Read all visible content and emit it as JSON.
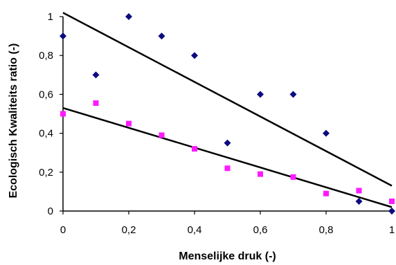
{
  "chart_data": {
    "type": "scatter",
    "title": "",
    "xlabel": "Menselijke druk (-)",
    "ylabel": "Ecologisch Kwaliteits ratio (-)",
    "xlim": [
      0,
      1
    ],
    "ylim": [
      0,
      1
    ],
    "grid": false,
    "legend": "none",
    "x_ticks": [
      0,
      0.2,
      0.4,
      0.6,
      0.8,
      1
    ],
    "x_tick_labels": [
      "0",
      "0,2",
      "0,4",
      "0,6",
      "0,8",
      "1"
    ],
    "y_ticks": [
      0,
      0.2,
      0.4,
      0.6,
      0.8,
      1
    ],
    "y_tick_labels": [
      "0",
      "0,2",
      "0,4",
      "0,6",
      "0,8",
      "1"
    ],
    "series": [
      {
        "marker": "diamond",
        "color": "#0b0b80",
        "x": [
          0,
          0.1,
          0.2,
          0.3,
          0.4,
          0.5,
          0.6,
          0.7,
          0.8,
          0.9,
          1.0
        ],
        "y": [
          0.9,
          0.7,
          1.0,
          0.9,
          0.8,
          0.35,
          0.6,
          0.6,
          0.4,
          0.05,
          0.0
        ],
        "trendline": {
          "slope": -0.89,
          "intercept": 1.02,
          "color": "#000000"
        }
      },
      {
        "marker": "square",
        "color": "#ff1aff",
        "x": [
          0,
          0.1,
          0.2,
          0.3,
          0.4,
          0.5,
          0.6,
          0.7,
          0.8,
          0.9,
          1.0
        ],
        "y": [
          0.5,
          0.555,
          0.45,
          0.39,
          0.32,
          0.22,
          0.19,
          0.175,
          0.09,
          0.105,
          0.05
        ],
        "trendline": {
          "slope": -0.51,
          "intercept": 0.53,
          "color": "#000000"
        }
      }
    ]
  }
}
